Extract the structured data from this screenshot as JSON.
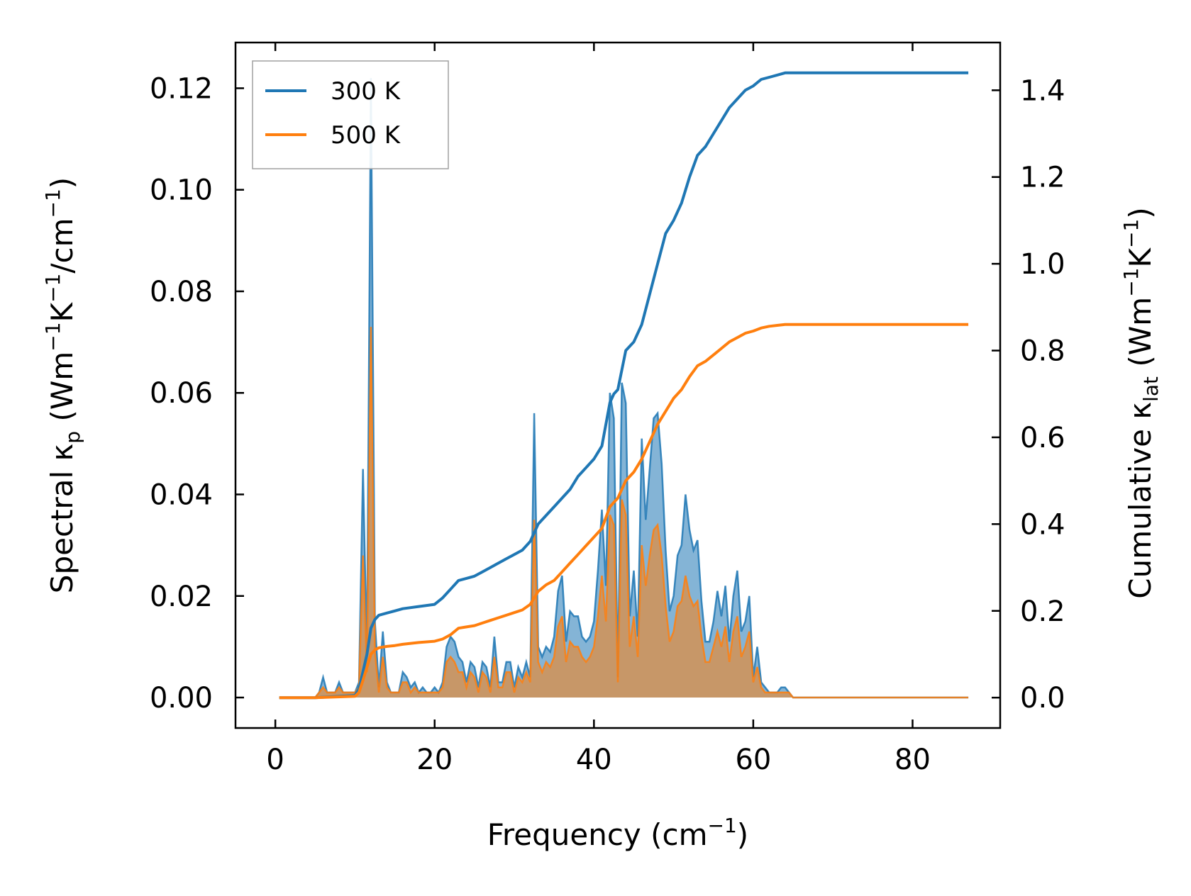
{
  "chart_data": {
    "type": "line",
    "x_axis": {
      "label": "Frequency (cm",
      "label_sup": "−1",
      "label_close": ")",
      "range": [
        -5,
        91
      ],
      "ticks": [
        0,
        20,
        40,
        60,
        80
      ],
      "tick_labels": [
        "0",
        "20",
        "40",
        "60",
        "80"
      ]
    },
    "y_left": {
      "label_pre": "Spectral κ",
      "label_sub": "p",
      "label_mid": " (Wm",
      "label_sup1": "−1",
      "label_k": "K",
      "label_sup2": "−1",
      "label_cm": "/cm",
      "label_sup3": "−1",
      "label_close": ")",
      "range": [
        -0.006,
        0.129
      ],
      "ticks": [
        0.0,
        0.02,
        0.04,
        0.06,
        0.08,
        0.1,
        0.12
      ],
      "tick_labels": [
        "0.00",
        "0.02",
        "0.04",
        "0.06",
        "0.08",
        "0.10",
        "0.12"
      ]
    },
    "y_right": {
      "label_pre": "Cumulative κ",
      "label_sub": "lat",
      "label_mid": " (Wm",
      "label_sup1": "−1",
      "label_k": "K",
      "label_sup2": "−1",
      "label_close": ")",
      "range": [
        -0.07,
        1.51
      ],
      "ticks": [
        0.0,
        0.2,
        0.4,
        0.6,
        0.8,
        1.0,
        1.2,
        1.4
      ],
      "tick_labels": [
        "0.0",
        "0.2",
        "0.4",
        "0.6",
        "0.8",
        "1.0",
        "1.2",
        "1.4"
      ]
    },
    "legend": {
      "position": "top-left",
      "entries": [
        {
          "label": "300 K",
          "color": "#1f77b4"
        },
        {
          "label": "500 K",
          "color": "#ff7f0e"
        }
      ]
    },
    "series": [
      {
        "name": "300 K",
        "axis": "right",
        "kind": "cumulative",
        "color": "#1f77b4",
        "x": [
          0.5,
          5,
          10,
          10.5,
          11,
          11.5,
          12,
          12.5,
          13,
          14,
          15,
          16,
          18,
          20,
          21,
          22,
          23,
          24,
          25,
          26,
          27,
          28,
          29,
          30,
          31,
          32,
          32.5,
          33,
          34,
          35,
          36,
          37,
          38,
          39,
          40,
          41,
          42,
          42.5,
          43,
          44,
          45,
          46,
          47,
          48,
          49,
          50,
          51,
          52,
          53,
          54,
          55,
          56,
          57,
          58,
          59,
          60,
          61,
          62,
          63,
          64,
          64.5,
          70,
          80,
          87
        ],
        "values": [
          0,
          0,
          0.005,
          0.02,
          0.06,
          0.1,
          0.16,
          0.18,
          0.19,
          0.195,
          0.2,
          0.205,
          0.21,
          0.215,
          0.23,
          0.25,
          0.27,
          0.275,
          0.28,
          0.29,
          0.3,
          0.31,
          0.32,
          0.33,
          0.34,
          0.36,
          0.38,
          0.4,
          0.42,
          0.44,
          0.46,
          0.48,
          0.51,
          0.53,
          0.55,
          0.58,
          0.68,
          0.7,
          0.71,
          0.8,
          0.82,
          0.86,
          0.93,
          1.0,
          1.07,
          1.1,
          1.14,
          1.2,
          1.25,
          1.27,
          1.3,
          1.33,
          1.36,
          1.38,
          1.4,
          1.41,
          1.425,
          1.43,
          1.435,
          1.44,
          1.44,
          1.44,
          1.44,
          1.44
        ]
      },
      {
        "name": "500 K",
        "axis": "right",
        "kind": "cumulative",
        "color": "#ff7f0e",
        "x": [
          0.5,
          5,
          10,
          10.5,
          11,
          11.5,
          12,
          12.5,
          13,
          14,
          15,
          16,
          18,
          20,
          21,
          22,
          23,
          24,
          25,
          26,
          27,
          28,
          29,
          30,
          31,
          32,
          32.5,
          33,
          34,
          35,
          36,
          37,
          38,
          39,
          40,
          41,
          42,
          42.5,
          43,
          44,
          45,
          46,
          47,
          48,
          49,
          50,
          51,
          52,
          53,
          54,
          55,
          56,
          57,
          58,
          59,
          60,
          61,
          62,
          63,
          64,
          64.5,
          70,
          80,
          87
        ],
        "values": [
          0,
          0,
          0.003,
          0.012,
          0.04,
          0.07,
          0.1,
          0.11,
          0.115,
          0.118,
          0.12,
          0.123,
          0.127,
          0.13,
          0.135,
          0.145,
          0.16,
          0.163,
          0.166,
          0.172,
          0.178,
          0.184,
          0.19,
          0.196,
          0.202,
          0.215,
          0.23,
          0.245,
          0.26,
          0.27,
          0.29,
          0.31,
          0.33,
          0.35,
          0.37,
          0.39,
          0.44,
          0.45,
          0.46,
          0.5,
          0.52,
          0.55,
          0.59,
          0.63,
          0.66,
          0.69,
          0.71,
          0.74,
          0.765,
          0.775,
          0.79,
          0.805,
          0.82,
          0.83,
          0.84,
          0.845,
          0.852,
          0.856,
          0.858,
          0.86,
          0.86,
          0.86,
          0.86,
          0.86
        ]
      },
      {
        "name": "300 K",
        "axis": "left",
        "kind": "spectral",
        "color": "#1f77b4",
        "x": [
          0.5,
          5,
          5.5,
          6,
          6.5,
          7,
          7.5,
          8,
          8.5,
          9,
          9.5,
          10,
          10.5,
          11,
          11.5,
          12,
          12.5,
          13,
          13.5,
          14,
          14.5,
          15,
          15.5,
          16,
          16.5,
          17,
          17.5,
          18,
          18.5,
          19,
          19.5,
          20,
          20.5,
          21,
          21.5,
          22,
          22.5,
          23,
          23.5,
          24,
          24.5,
          25,
          25.5,
          26,
          26.5,
          27,
          27.5,
          28,
          28.5,
          29,
          29.5,
          30,
          30.5,
          31,
          31.5,
          32,
          32.5,
          33,
          33.5,
          34,
          34.5,
          35,
          35.5,
          36,
          36.5,
          37,
          37.5,
          38,
          38.5,
          39,
          39.5,
          40,
          40.5,
          41,
          41.5,
          42,
          42.5,
          43,
          43.5,
          44,
          44.5,
          45,
          45.5,
          46,
          46.5,
          47,
          47.5,
          48,
          48.5,
          49,
          49.5,
          50,
          50.5,
          51,
          51.5,
          52,
          52.5,
          53,
          53.5,
          54,
          54.5,
          55,
          55.5,
          56,
          56.5,
          57,
          57.5,
          58,
          58.5,
          59,
          59.5,
          60,
          60.5,
          61,
          61.5,
          62,
          62.5,
          63,
          63.5,
          64,
          64.5,
          65,
          70,
          80,
          87
        ],
        "values": [
          0,
          0,
          0.001,
          0.004,
          0.001,
          0.001,
          0.001,
          0.003,
          0.001,
          0.001,
          0.001,
          0.001,
          0.003,
          0.045,
          0.008,
          0.122,
          0.015,
          0.002,
          0.013,
          0.003,
          0.001,
          0.001,
          0.001,
          0.005,
          0.004,
          0.002,
          0.003,
          0.001,
          0.002,
          0.001,
          0.001,
          0.002,
          0.001,
          0.003,
          0.01,
          0.012,
          0.011,
          0.008,
          0.007,
          0.003,
          0.007,
          0.006,
          0.002,
          0.007,
          0.006,
          0.002,
          0.012,
          0.003,
          0.003,
          0.007,
          0.007,
          0.002,
          0.006,
          0.004,
          0.007,
          0.004,
          0.056,
          0.01,
          0.008,
          0.01,
          0.009,
          0.012,
          0.021,
          0.024,
          0.011,
          0.017,
          0.016,
          0.016,
          0.012,
          0.011,
          0.012,
          0.015,
          0.025,
          0.037,
          0.022,
          0.06,
          0.055,
          0.004,
          0.062,
          0.058,
          0.016,
          0.025,
          0.012,
          0.051,
          0.035,
          0.045,
          0.055,
          0.056,
          0.046,
          0.029,
          0.017,
          0.02,
          0.028,
          0.03,
          0.04,
          0.033,
          0.029,
          0.031,
          0.019,
          0.011,
          0.011,
          0.015,
          0.021,
          0.016,
          0.022,
          0.011,
          0.02,
          0.025,
          0.013,
          0.015,
          0.02,
          0.004,
          0.01,
          0.003,
          0.002,
          0.001,
          0.001,
          0.001,
          0.002,
          0.002,
          0.001,
          0,
          0,
          0,
          0
        ]
      },
      {
        "name": "500 K",
        "axis": "left",
        "kind": "spectral",
        "color": "#ff7f0e",
        "x": [
          0.5,
          5,
          5.5,
          6,
          6.5,
          7,
          7.5,
          8,
          8.5,
          9,
          9.5,
          10,
          10.5,
          11,
          11.5,
          12,
          12.5,
          13,
          13.5,
          14,
          14.5,
          15,
          15.5,
          16,
          16.5,
          17,
          17.5,
          18,
          18.5,
          19,
          19.5,
          20,
          20.5,
          21,
          21.5,
          22,
          22.5,
          23,
          23.5,
          24,
          24.5,
          25,
          25.5,
          26,
          26.5,
          27,
          27.5,
          28,
          28.5,
          29,
          29.5,
          30,
          30.5,
          31,
          31.5,
          32,
          32.5,
          33,
          33.5,
          34,
          34.5,
          35,
          35.5,
          36,
          36.5,
          37,
          37.5,
          38,
          38.5,
          39,
          39.5,
          40,
          40.5,
          41,
          41.5,
          42,
          42.5,
          43,
          43.5,
          44,
          44.5,
          45,
          45.5,
          46,
          46.5,
          47,
          47.5,
          48,
          48.5,
          49,
          49.5,
          50,
          50.5,
          51,
          51.5,
          52,
          52.5,
          53,
          53.5,
          54,
          54.5,
          55,
          55.5,
          56,
          56.5,
          57,
          57.5,
          58,
          58.5,
          59,
          59.5,
          60,
          60.5,
          61,
          61.5,
          62,
          62.5,
          63,
          63.5,
          64,
          64.5,
          65,
          70,
          80,
          87
        ],
        "values": [
          0,
          0,
          0.001,
          0.002,
          0.001,
          0.001,
          0.001,
          0.002,
          0.001,
          0.001,
          0.001,
          0.001,
          0.002,
          0.028,
          0.005,
          0.073,
          0.009,
          0.001,
          0.008,
          0.002,
          0.001,
          0.001,
          0.001,
          0.003,
          0.003,
          0.001,
          0.002,
          0.001,
          0.001,
          0.001,
          0.001,
          0.001,
          0.001,
          0.002,
          0.007,
          0.008,
          0.007,
          0.005,
          0.005,
          0.002,
          0.005,
          0.004,
          0.001,
          0.005,
          0.004,
          0.001,
          0.008,
          0.002,
          0.002,
          0.005,
          0.005,
          0.001,
          0.004,
          0.003,
          0.005,
          0.003,
          0.035,
          0.007,
          0.005,
          0.007,
          0.006,
          0.008,
          0.014,
          0.016,
          0.007,
          0.011,
          0.01,
          0.01,
          0.008,
          0.007,
          0.008,
          0.01,
          0.016,
          0.024,
          0.015,
          0.036,
          0.034,
          0.003,
          0.039,
          0.036,
          0.01,
          0.016,
          0.008,
          0.03,
          0.022,
          0.028,
          0.033,
          0.034,
          0.028,
          0.018,
          0.011,
          0.013,
          0.018,
          0.019,
          0.024,
          0.02,
          0.018,
          0.019,
          0.012,
          0.007,
          0.007,
          0.01,
          0.013,
          0.01,
          0.014,
          0.007,
          0.013,
          0.016,
          0.008,
          0.01,
          0.013,
          0.003,
          0.006,
          0.002,
          0.001,
          0.001,
          0.001,
          0.001,
          0.001,
          0.001,
          0.001,
          0,
          0,
          0,
          0
        ]
      }
    ]
  }
}
